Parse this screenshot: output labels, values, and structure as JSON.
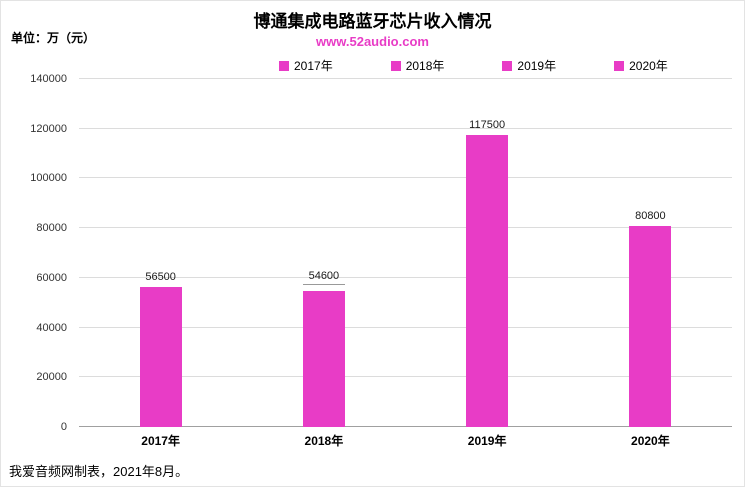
{
  "chart": {
    "unit_label": "单位：万（元）",
    "title": "博通集成电路蓝牙芯片收入情况",
    "subtitle": "www.52audio.com",
    "footer": "我爱音频网制表，2021年8月。",
    "accent_color": "#E83CC6"
  },
  "chart_data": {
    "type": "bar",
    "title": "博通集成电路蓝牙芯片收入情况",
    "subtitle": "www.52audio.com",
    "unit": "万（元）",
    "categories": [
      "2017年",
      "2018年",
      "2019年",
      "2020年"
    ],
    "values": [
      56500,
      54600,
      117500,
      80800
    ],
    "legend": [
      "2017年",
      "2018年",
      "2019年",
      "2020年"
    ],
    "legend_position": "top",
    "xlabel": "",
    "ylabel": "",
    "ylim": [
      0,
      140000
    ],
    "ytick_step": 20000,
    "ytick_labels": [
      "0",
      "20000",
      "40000",
      "60000",
      "80000",
      "100000",
      "120000",
      "140000"
    ],
    "grid": true,
    "bar_color": "#E83CC6",
    "label_leader_index": 1,
    "footer": "我爱音频网制表，2021年8月。"
  }
}
